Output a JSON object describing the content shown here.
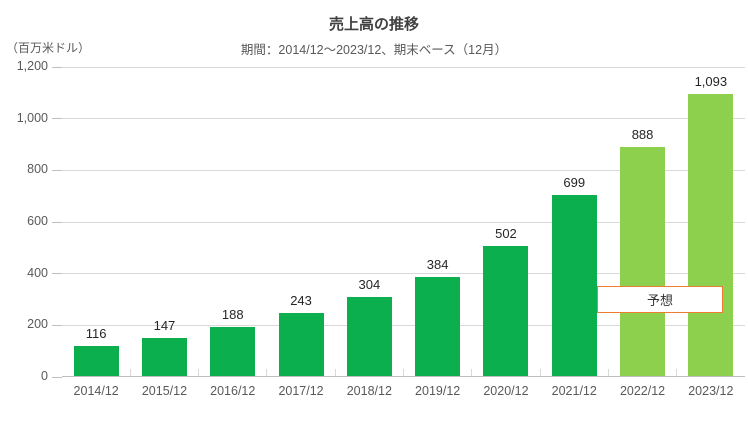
{
  "chart": {
    "title": "売上高の推移",
    "subtitle": "期間：2014/12～2023/12、期末ベース（12月）",
    "unit_label": "（百万米ドル）",
    "forecast_label": "予想"
  },
  "colors": {
    "actual_bar": "#0CAF4E",
    "forecast_bar": "#8CD04E",
    "gridline": "#D9D9D9",
    "axis_line": "#BFBFBF",
    "title_text": "#404040",
    "subtitle_text": "#595959",
    "axis_text": "#595959",
    "value_text": "#262626",
    "forecast_box_border": "#ED7D31"
  },
  "chart_data": {
    "type": "bar",
    "title": "売上高の推移",
    "subtitle": "期間：2014/12～2023/12、期末ベース（12月）",
    "ylabel": "（百万米ドル）",
    "xlabel": "",
    "categories": [
      "2014/12",
      "2015/12",
      "2016/12",
      "2017/12",
      "2018/12",
      "2019/12",
      "2020/12",
      "2021/12",
      "2022/12",
      "2023/12"
    ],
    "values": [
      116,
      147,
      188,
      243,
      304,
      384,
      502,
      699,
      888,
      1093
    ],
    "value_labels": [
      "116",
      "147",
      "188",
      "243",
      "304",
      "384",
      "502",
      "699",
      "888",
      "1,093"
    ],
    "forecast": [
      false,
      false,
      false,
      false,
      false,
      false,
      false,
      false,
      true,
      true
    ],
    "ylim": [
      0,
      1200
    ],
    "ytick_values": [
      0,
      200,
      400,
      600,
      800,
      1000,
      1200
    ],
    "ytick_labels": [
      "0",
      "200",
      "400",
      "600",
      "800",
      "1,000",
      "1,200"
    ],
    "grid": true,
    "legend": "none",
    "annotation": "予想"
  }
}
